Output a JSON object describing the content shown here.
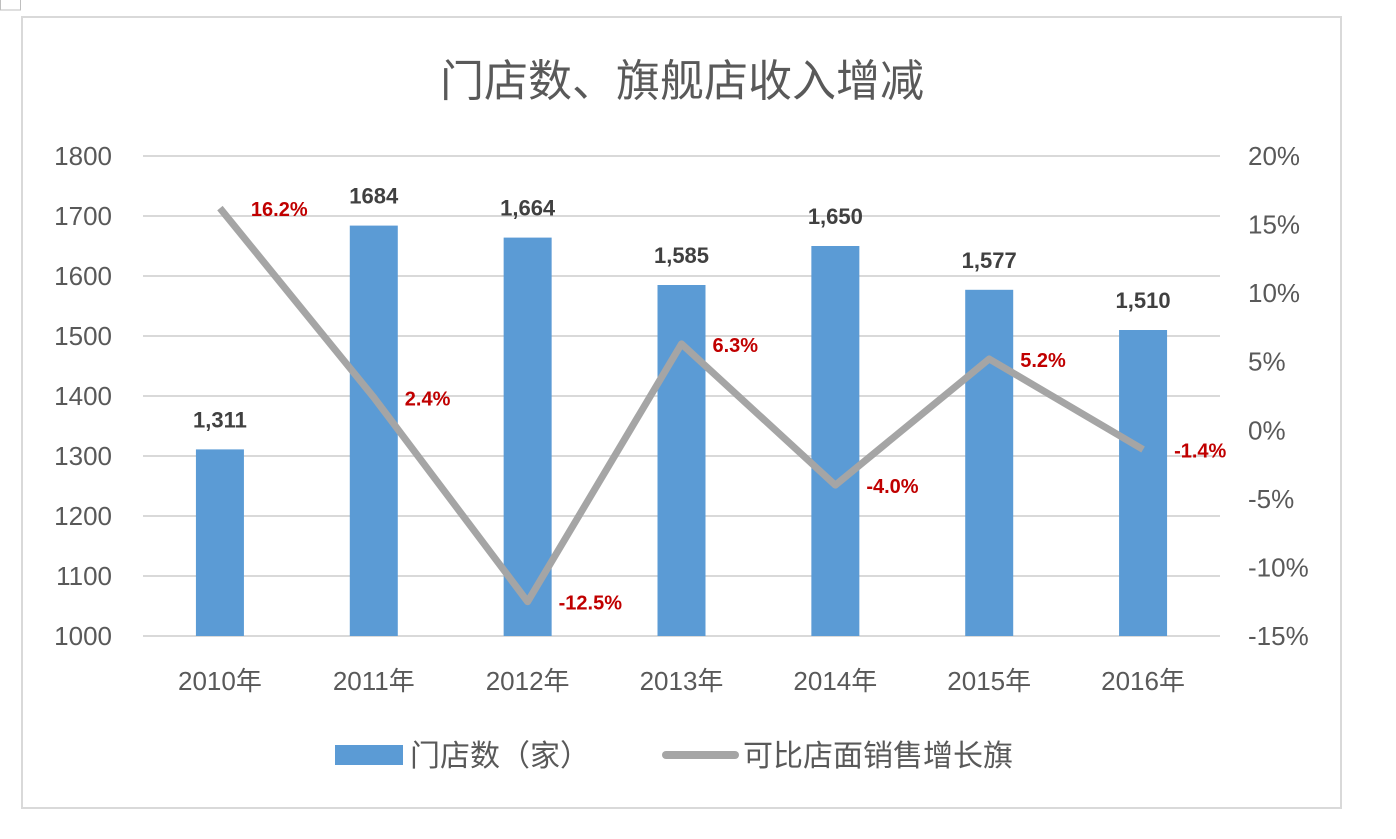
{
  "chart_data": {
    "type": "bar+line",
    "title": "门店数、旗舰店收入增减",
    "categories": [
      "2010年",
      "2011年",
      "2012年",
      "2013年",
      "2014年",
      "2015年",
      "2016年"
    ],
    "series": [
      {
        "name": "门店数（家）",
        "type": "bar",
        "axis": "left",
        "values": [
          1311,
          1684,
          1664,
          1585,
          1650,
          1577,
          1510
        ],
        "labels": [
          "1,311",
          "1684",
          "1,664",
          "1,585",
          "1,650",
          "1,577",
          "1,510"
        ],
        "color": "#5b9bd5"
      },
      {
        "name": "可比店面销售增长旗",
        "type": "line",
        "axis": "right",
        "values": [
          16.2,
          2.4,
          -12.5,
          6.3,
          -4.0,
          5.2,
          -1.4
        ],
        "labels": [
          "16.2%",
          "2.4%",
          "-12.5%",
          "6.3%",
          "-4.0%",
          "5.2%",
          "-1.4%"
        ],
        "color": "#a5a5a5",
        "label_color": "#c00000"
      }
    ],
    "y_left": {
      "range": [
        1000,
        1800
      ],
      "ticks": [
        "1000",
        "1100",
        "1200",
        "1300",
        "1400",
        "1500",
        "1600",
        "1700",
        "1800"
      ]
    },
    "y_right": {
      "range": [
        -15,
        20
      ],
      "ticks": [
        "-15%",
        "-10%",
        "-5%",
        "0%",
        "5%",
        "10%",
        "15%",
        "20%"
      ]
    },
    "grid": true,
    "legend": "bottom"
  }
}
